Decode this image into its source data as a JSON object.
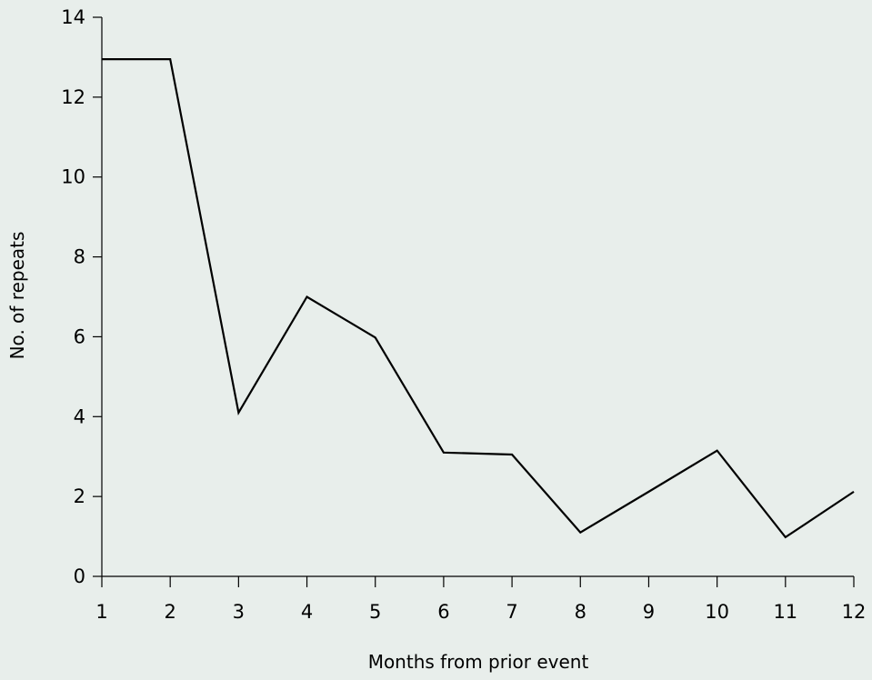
{
  "chart_data": {
    "type": "line",
    "title": "",
    "xlabel": "Months from prior event",
    "ylabel": "No. of repeats",
    "x": [
      1,
      2,
      3,
      4,
      5,
      6,
      7,
      8,
      9,
      10,
      11,
      12
    ],
    "series": [
      {
        "values": [
          12.95,
          12.95,
          4.1,
          7.0,
          5.98,
          3.1,
          3.05,
          1.1,
          2.12,
          3.15,
          0.98,
          2.12
        ]
      }
    ],
    "xlim": [
      1,
      12
    ],
    "ylim": [
      0,
      14
    ],
    "x_ticks": [
      "1",
      "2",
      "3",
      "4",
      "5",
      "6",
      "7",
      "8",
      "9",
      "10",
      "11",
      "12"
    ],
    "y_ticks": [
      "0",
      "2",
      "4",
      "6",
      "8",
      "10",
      "12",
      "14"
    ],
    "grid": false,
    "legend": "none",
    "colors": {
      "line": "#000000",
      "background": "#e8eeeb"
    }
  }
}
